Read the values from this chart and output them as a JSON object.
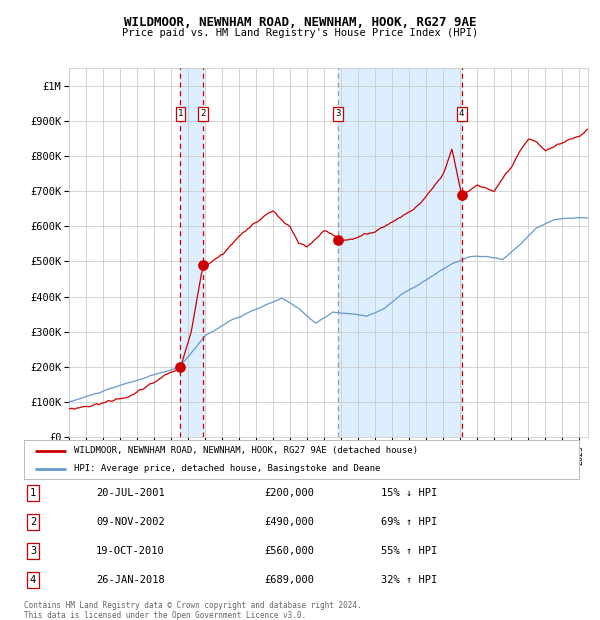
{
  "title": "WILDMOOR, NEWNHAM ROAD, NEWNHAM, HOOK, RG27 9AE",
  "subtitle": "Price paid vs. HM Land Registry's House Price Index (HPI)",
  "legend_line1": "WILDMOOR, NEWNHAM ROAD, NEWNHAM, HOOK, RG27 9AE (detached house)",
  "legend_line2": "HPI: Average price, detached house, Basingstoke and Deane",
  "footer1": "Contains HM Land Registry data © Crown copyright and database right 2024.",
  "footer2": "This data is licensed under the Open Government Licence v3.0.",
  "transactions": [
    {
      "num": 1,
      "date": "20-JUL-2001",
      "price": 200000,
      "pct": "15%",
      "dir": "↓",
      "year_x": 2001.55
    },
    {
      "num": 2,
      "date": "09-NOV-2002",
      "price": 490000,
      "pct": "69%",
      "dir": "↑",
      "year_x": 2002.86
    },
    {
      "num": 3,
      "date": "19-OCT-2010",
      "price": 560000,
      "pct": "55%",
      "dir": "↑",
      "year_x": 2010.8
    },
    {
      "num": 4,
      "date": "26-JAN-2018",
      "price": 689000,
      "pct": "32%",
      "dir": "↑",
      "year_x": 2018.07
    }
  ],
  "red_line_color": "#cc0000",
  "blue_line_color": "#6699cc",
  "shade_color": "#ddeeff",
  "vline_color": "#cc0000",
  "ylim": [
    0,
    1050000
  ],
  "yticks": [
    0,
    100000,
    200000,
    300000,
    400000,
    500000,
    600000,
    700000,
    800000,
    900000,
    1000000
  ],
  "ytick_labels": [
    "£0",
    "£100K",
    "£200K",
    "£300K",
    "£400K",
    "£500K",
    "£600K",
    "£700K",
    "£800K",
    "£900K",
    "£1M"
  ],
  "xlim_start": 1995.0,
  "xlim_end": 2025.5,
  "background_color": "#ffffff",
  "grid_color": "#cccccc",
  "hpi_keypoints": [
    [
      1995.0,
      100000
    ],
    [
      1997.0,
      130000
    ],
    [
      1999.0,
      160000
    ],
    [
      2001.5,
      195000
    ],
    [
      2003.0,
      285000
    ],
    [
      2004.5,
      330000
    ],
    [
      2007.5,
      390000
    ],
    [
      2008.5,
      360000
    ],
    [
      2009.5,
      320000
    ],
    [
      2010.5,
      350000
    ],
    [
      2011.5,
      345000
    ],
    [
      2012.5,
      340000
    ],
    [
      2013.5,
      360000
    ],
    [
      2014.5,
      400000
    ],
    [
      2015.5,
      430000
    ],
    [
      2016.5,
      460000
    ],
    [
      2017.5,
      490000
    ],
    [
      2018.5,
      510000
    ],
    [
      2019.5,
      510000
    ],
    [
      2020.5,
      500000
    ],
    [
      2021.5,
      540000
    ],
    [
      2022.5,
      590000
    ],
    [
      2023.5,
      610000
    ],
    [
      2024.5,
      615000
    ],
    [
      2025.5,
      615000
    ]
  ],
  "prop_keypoints": [
    [
      1995.0,
      80000
    ],
    [
      1997.0,
      100000
    ],
    [
      1999.0,
      130000
    ],
    [
      2001.55,
      200000
    ],
    [
      2002.2,
      300000
    ],
    [
      2002.86,
      490000
    ],
    [
      2003.5,
      510000
    ],
    [
      2004.0,
      530000
    ],
    [
      2005.0,
      580000
    ],
    [
      2006.0,
      620000
    ],
    [
      2007.0,
      650000
    ],
    [
      2007.5,
      620000
    ],
    [
      2008.0,
      600000
    ],
    [
      2008.5,
      550000
    ],
    [
      2009.0,
      540000
    ],
    [
      2009.5,
      560000
    ],
    [
      2010.0,
      580000
    ],
    [
      2010.8,
      560000
    ],
    [
      2011.0,
      550000
    ],
    [
      2011.5,
      560000
    ],
    [
      2012.0,
      565000
    ],
    [
      2013.0,
      580000
    ],
    [
      2014.0,
      610000
    ],
    [
      2015.0,
      640000
    ],
    [
      2016.0,
      680000
    ],
    [
      2017.0,
      750000
    ],
    [
      2017.5,
      820000
    ],
    [
      2018.07,
      689000
    ],
    [
      2018.5,
      700000
    ],
    [
      2019.0,
      720000
    ],
    [
      2019.5,
      710000
    ],
    [
      2020.0,
      700000
    ],
    [
      2020.5,
      730000
    ],
    [
      2021.0,
      760000
    ],
    [
      2021.5,
      800000
    ],
    [
      2022.0,
      830000
    ],
    [
      2022.5,
      820000
    ],
    [
      2023.0,
      800000
    ],
    [
      2023.5,
      810000
    ],
    [
      2024.0,
      820000
    ],
    [
      2024.5,
      830000
    ],
    [
      2025.0,
      840000
    ],
    [
      2025.5,
      860000
    ]
  ]
}
